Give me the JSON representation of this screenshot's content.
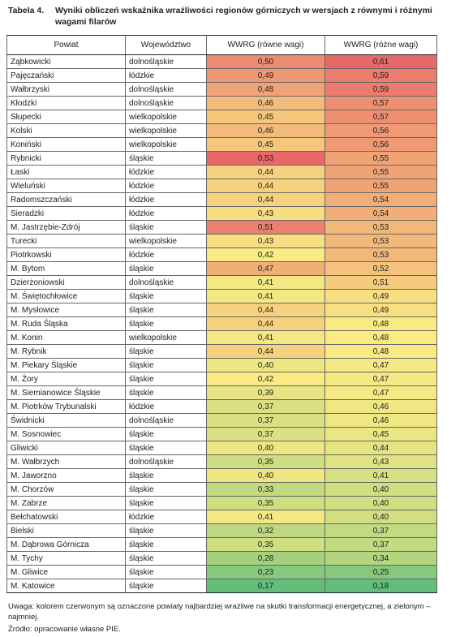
{
  "caption": {
    "number": "Tabela 4.",
    "title": "Wyniki obliczeń wskaźnika wrażliwości regionów górniczych w wersjach z równymi i różnymi wagami filarów"
  },
  "table": {
    "headers": [
      "Powiat",
      "Województwo",
      "WWRG (równe wagi)",
      "WWRG (różne wagi)"
    ],
    "rows": [
      [
        "Ząbkowicki",
        "dolnośląskie",
        "0,50",
        "0,61"
      ],
      [
        "Pajęczański",
        "łódzkie",
        "0,49",
        "0,59"
      ],
      [
        "Wałbrzyski",
        "dolnośląskie",
        "0,48",
        "0,59"
      ],
      [
        "Kłodzki",
        "dolnośląskie",
        "0,46",
        "0,57"
      ],
      [
        "Słupecki",
        "wielkopolskie",
        "0,45",
        "0,57"
      ],
      [
        "Kolski",
        "wielkopolskie",
        "0,46",
        "0,56"
      ],
      [
        "Koniński",
        "wielkopolskie",
        "0,45",
        "0,56"
      ],
      [
        "Rybnicki",
        "śląskie",
        "0,53",
        "0,55"
      ],
      [
        "Łaski",
        "łódzkie",
        "0,44",
        "0,55"
      ],
      [
        "Wieluński",
        "łódzkie",
        "0,44",
        "0,55"
      ],
      [
        "Radomszczański",
        "łódzkie",
        "0,44",
        "0,54"
      ],
      [
        "Sieradzki",
        "łódzkie",
        "0,43",
        "0,54"
      ],
      [
        "M. Jastrzębie-Zdrój",
        "śląskie",
        "0,51",
        "0,53"
      ],
      [
        "Turecki",
        "wielkopolskie",
        "0,43",
        "0,53"
      ],
      [
        "Piotrkowski",
        "łódzkie",
        "0,42",
        "0,53"
      ],
      [
        "M. Bytom",
        "śląskie",
        "0,47",
        "0,52"
      ],
      [
        "Dzierżoniowski",
        "dolnośląskie",
        "0,41",
        "0,51"
      ],
      [
        "M. Świętochłowice",
        "śląskie",
        "0,41",
        "0,49"
      ],
      [
        "M. Mysłowice",
        "śląskie",
        "0,44",
        "0,49"
      ],
      [
        "M. Ruda Śląska",
        "śląskie",
        "0,44",
        "0,48"
      ],
      [
        "M. Konin",
        "wielkopolskie",
        "0,41",
        "0,48"
      ],
      [
        "M. Rybnik",
        "śląskie",
        "0,44",
        "0,48"
      ],
      [
        "M. Piekary Śląskie",
        "śląskie",
        "0,40",
        "0,47"
      ],
      [
        "M. Żory",
        "śląskie",
        "0,42",
        "0,47"
      ],
      [
        "M. Siemianowice Śląskie",
        "śląskie",
        "0,39",
        "0,47"
      ],
      [
        "M. Piotrków Trybunalski",
        "łódzkie",
        "0,37",
        "0,46"
      ],
      [
        "Świdnicki",
        "dolnośląskie",
        "0,37",
        "0,46"
      ],
      [
        "M. Sosnowiec",
        "śląskie",
        "0,37",
        "0,45"
      ],
      [
        "Gliwicki",
        "śląskie",
        "0,40",
        "0,44"
      ],
      [
        "M. Wałbrzych",
        "dolnośląskie",
        "0,35",
        "0,43"
      ],
      [
        "M. Jaworzno",
        "śląskie",
        "0,40",
        "0,41"
      ],
      [
        "M. Chorzów",
        "śląskie",
        "0,33",
        "0,40"
      ],
      [
        "M. Zabrze",
        "śląskie",
        "0,35",
        "0,40"
      ],
      [
        "Bełchatowski",
        "łódzkie",
        "0,41",
        "0,40"
      ],
      [
        "Bielski",
        "śląskie",
        "0,32",
        "0,37"
      ],
      [
        "M. Dąbrowa Górnicza",
        "śląskie",
        "0,35",
        "0,37"
      ],
      [
        "M. Tychy",
        "śląskie",
        "0,28",
        "0,34"
      ],
      [
        "M. Gliwice",
        "śląskie",
        "0,23",
        "0,25"
      ],
      [
        "M. Katowice",
        "śląskie",
        "0,17",
        "0,18"
      ]
    ]
  },
  "notes": {
    "legend": "Uwaga: kolorem czerwonym są oznaczone powiaty najbardziej wrażliwe na skutki transformacji energetycznej, a zielonym – najmniej.",
    "source": "Źródło: opracowanie własne PIE."
  },
  "colors": {
    "high": "#e8686a",
    "mid": "#f9ea84",
    "low": "#63be7b"
  }
}
